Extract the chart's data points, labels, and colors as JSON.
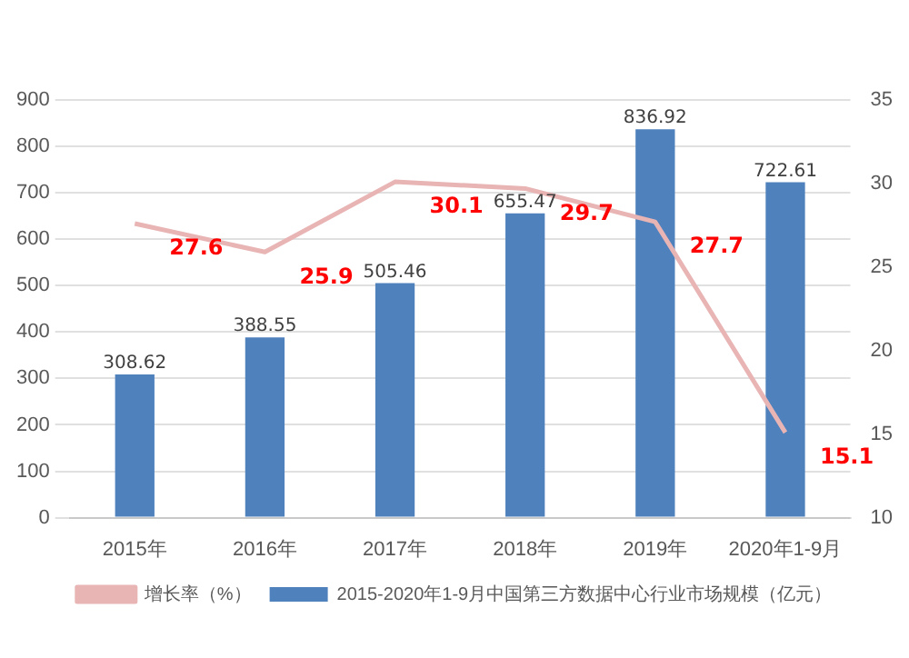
{
  "chart_data": {
    "type": "bar",
    "categories": [
      "2015年",
      "2016年",
      "2017年",
      "2018年",
      "2019年",
      "2020年1-9月"
    ],
    "series": [
      {
        "name": "2015-2020年1-9月中国第三方数据中心行业市场规模（亿元）",
        "color": "#4f81bd",
        "values": [
          308.62,
          388.55,
          505.46,
          655.47,
          836.92,
          722.61
        ]
      },
      {
        "name": "增长率（%）",
        "type": "line",
        "axis": "y2",
        "color": "#e8b4b4",
        "marker": "none",
        "values": [
          27.6,
          25.9,
          30.1,
          29.7,
          27.7,
          15.1
        ]
      }
    ],
    "ylim": [
      0,
      900
    ],
    "yticks": [
      0,
      100,
      200,
      300,
      400,
      500,
      600,
      700,
      800,
      900
    ],
    "y2lim": [
      10,
      35
    ],
    "y2ticks": [
      10,
      15,
      20,
      25,
      30,
      35
    ],
    "grid": "y",
    "legend": "bottom",
    "data_labels": true
  }
}
